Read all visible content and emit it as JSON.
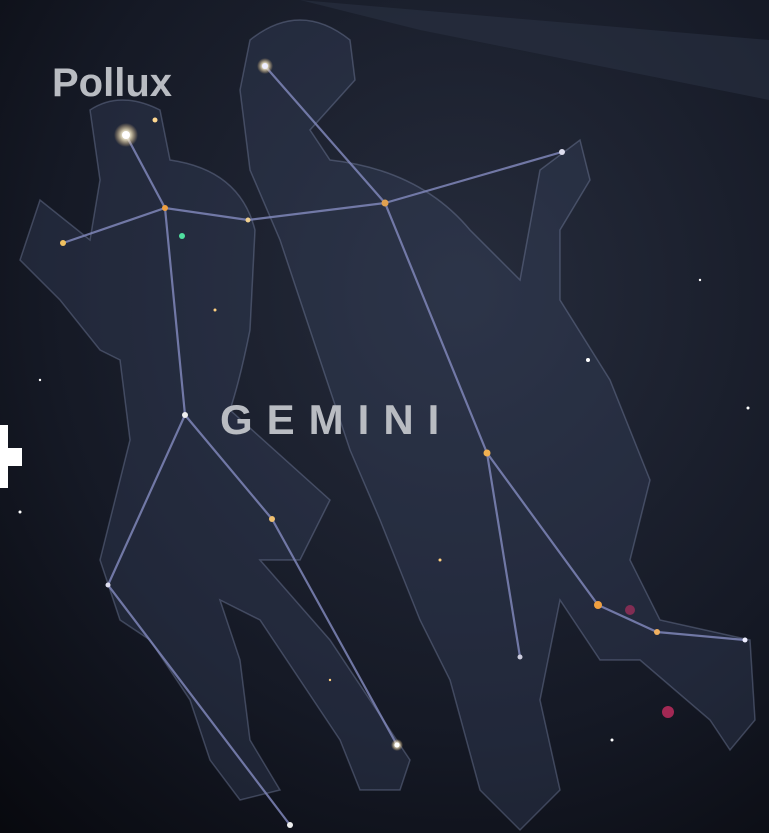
{
  "labels": {
    "star": "Pollux",
    "constellation": "GEMINI"
  }
}
